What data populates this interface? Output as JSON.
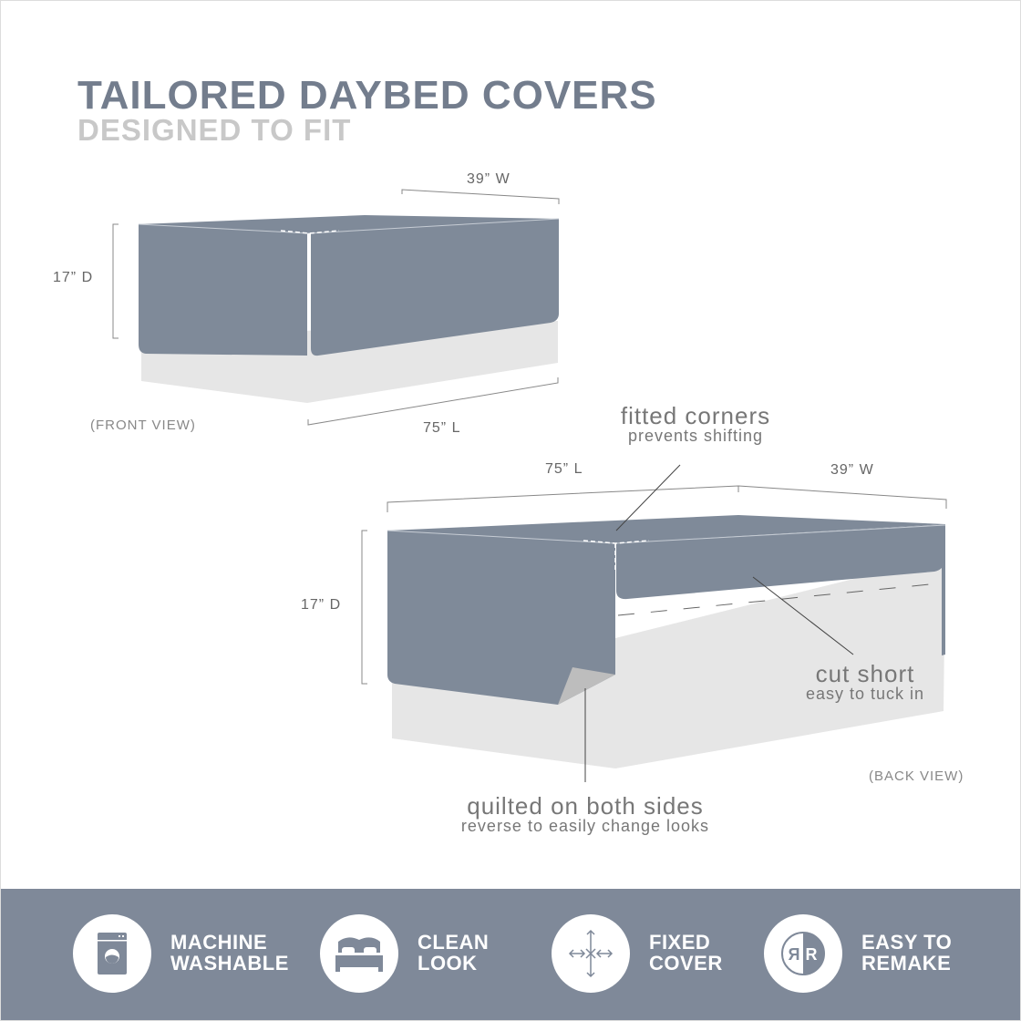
{
  "header": {
    "title": "TAILORED DAYBED COVERS",
    "subtitle": "DESIGNED TO FIT"
  },
  "front_view": {
    "label": "(FRONT VIEW)",
    "width": "39” W",
    "depth": "17” D",
    "length": "75” L"
  },
  "back_view": {
    "label": "(BACK VIEW)",
    "width": "39” W",
    "depth": "17” D",
    "length": "75” L"
  },
  "callouts": [
    {
      "heading": "fitted corners",
      "sub": "prevents shifting"
    },
    {
      "heading": "cut short",
      "sub": "easy to tuck in"
    },
    {
      "heading": "quilted on both sides",
      "sub": "reverse to easily change looks"
    }
  ],
  "features": [
    {
      "icon": "washing-machine-icon",
      "line1": "MACHINE",
      "line2": "WASHABLE"
    },
    {
      "icon": "bed-icon",
      "line1": "CLEAN",
      "line2": "LOOK"
    },
    {
      "icon": "arrows-cross-icon",
      "line1": "FIXED",
      "line2": "COVER"
    },
    {
      "icon": "reversible-r-icon",
      "line1": "EASY TO",
      "line2": "REMAKE"
    }
  ],
  "colors": {
    "cover": "#7f8a99",
    "base": "#e6e6e6",
    "banner": "#7f8999",
    "title": "#737d8d",
    "subtitle": "#c8c8c8"
  }
}
